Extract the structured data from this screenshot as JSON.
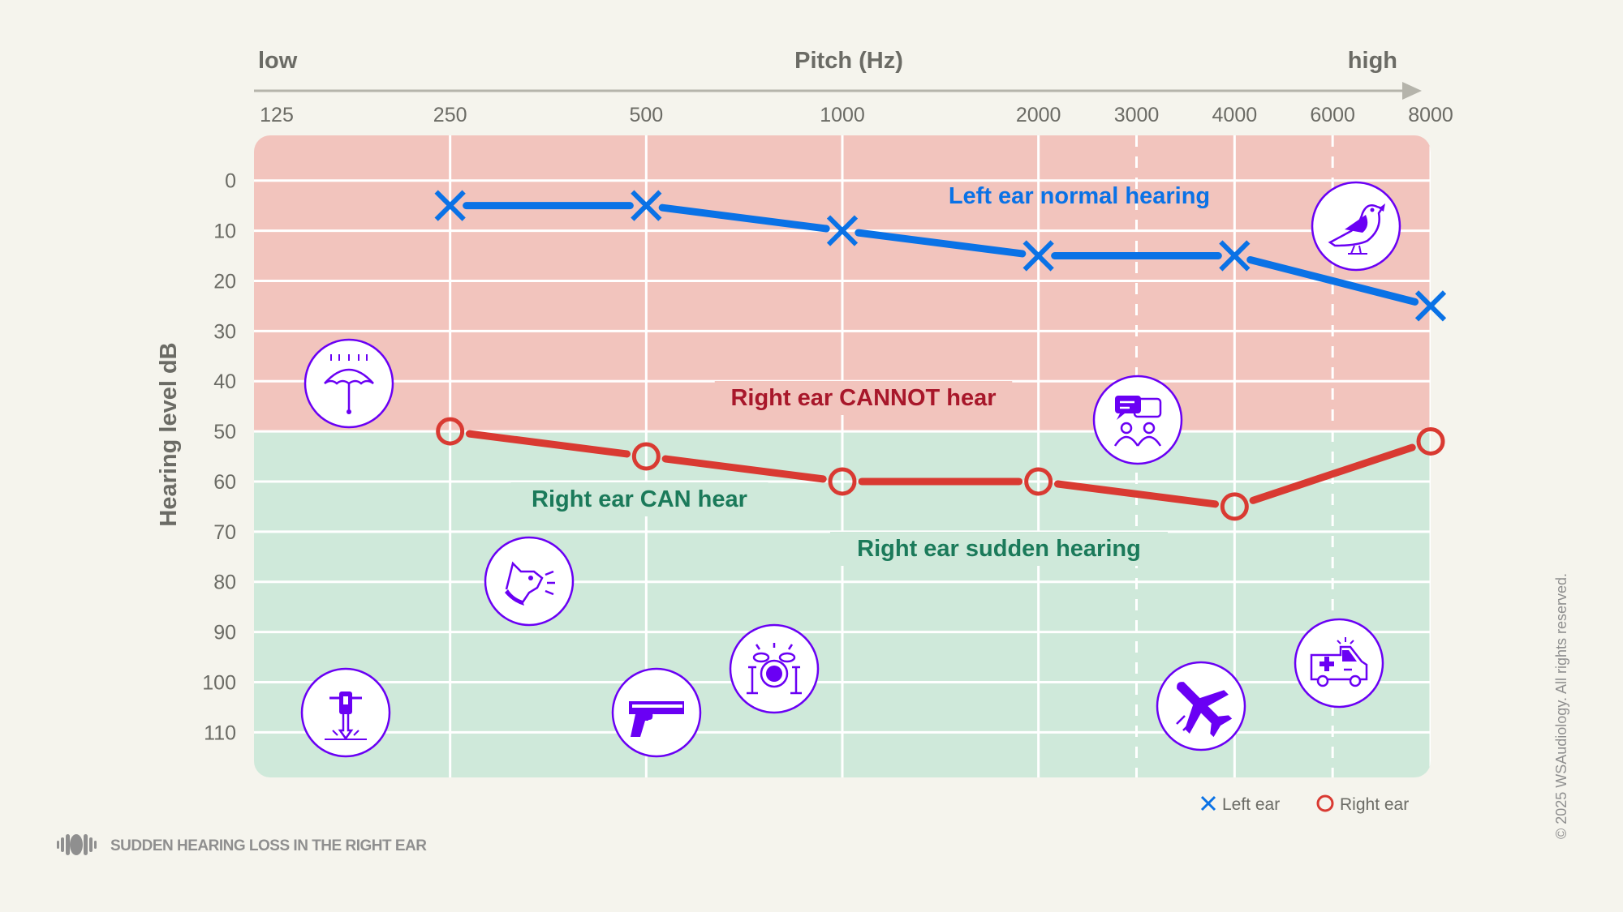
{
  "chart_data": {
    "type": "line",
    "title": "",
    "xlabel": "Pitch (Hz)",
    "xlabel_low": "low",
    "xlabel_high": "high",
    "ylabel": "Hearing level dB",
    "x_ticks": [
      125,
      250,
      500,
      1000,
      2000,
      3000,
      4000,
      6000,
      8000
    ],
    "x_tick_labels": [
      "125",
      "250",
      "500",
      "1000",
      "2000",
      "3000",
      "4000",
      "6000",
      "8000"
    ],
    "x_scale": "log (audiogram octaves, 3000/6000 as dashed half-octave lines)",
    "y_ticks": [
      0,
      10,
      20,
      30,
      40,
      50,
      60,
      70,
      80,
      90,
      100,
      110
    ],
    "y_tick_labels": [
      "0",
      "10",
      "20",
      "30",
      "40",
      "50",
      "60",
      "70",
      "80",
      "90",
      "100",
      "110"
    ],
    "ylim": [
      -9,
      119
    ],
    "y_inverted": true,
    "grid": true,
    "regions": [
      {
        "name": "cannot-hear",
        "from": -9,
        "to": 50,
        "color": "#f2c4bd"
      },
      {
        "name": "can-hear",
        "from": 50,
        "to": 119,
        "color": "#cfe9da"
      }
    ],
    "series": [
      {
        "name": "Left ear",
        "marker": "x",
        "color": "#0a72e6",
        "x": [
          250,
          500,
          1000,
          2000,
          4000,
          8000
        ],
        "values": [
          5,
          5,
          10,
          15,
          15,
          25
        ]
      },
      {
        "name": "Right ear",
        "marker": "o",
        "color": "#d93a32",
        "x": [
          250,
          500,
          1000,
          2000,
          4000,
          8000
        ],
        "values": [
          50,
          55,
          60,
          60,
          65,
          52
        ]
      }
    ],
    "annotations": [
      {
        "text": "Left ear normal hearing",
        "color": "#0a72e6"
      },
      {
        "text": "Right ear CANNOT hear",
        "color": "#a8172a"
      },
      {
        "text": "Right ear CAN hear",
        "color": "#1b7a5a"
      },
      {
        "text": "Right ear sudden hearing",
        "color": "#1b7a5a"
      }
    ],
    "legend": {
      "position": "bottom-right",
      "entries": [
        "Left ear",
        "Right ear"
      ]
    },
    "icons": [
      "umbrella-rain-icon",
      "dog-barking-icon",
      "jackhammer-icon",
      "gun-icon",
      "drums-icon",
      "conversation-icon",
      "bird-icon",
      "airplane-icon",
      "ambulance-icon"
    ],
    "icon_color": "#6a00f4"
  },
  "footer": {
    "title": "SUDDEN HEARING LOSS IN THE RIGHT EAR",
    "icon": "sound-wave-icon"
  },
  "copyright": "© 2025 WSAudiology. All rights reserved."
}
